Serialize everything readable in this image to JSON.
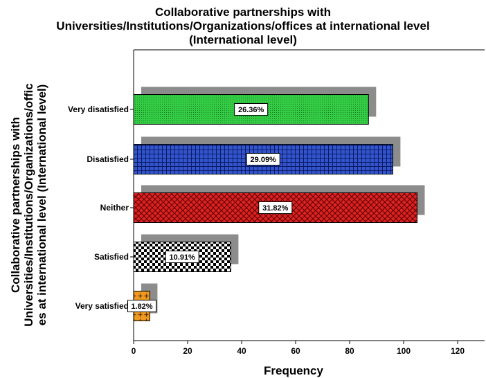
{
  "chart_data": {
    "type": "bar",
    "orientation": "horizontal",
    "title_lines": [
      "Collaborative partnerships with",
      "Universities/Institutions/Organizations/offices at international level",
      "(International level)"
    ],
    "xlabel": "Frequency",
    "ylabel_lines": [
      "Collaborative partnerships with",
      "Universities/Institutions/Organizations/offic",
      "es at international level (International level)"
    ],
    "xlim": [
      0,
      130
    ],
    "xticks": [
      0,
      20,
      40,
      60,
      80,
      100,
      120
    ],
    "categories": [
      "Very disatisfied",
      "Disatisfied",
      "Neither",
      "Satisfied",
      "Very satisfied"
    ],
    "values": [
      87,
      96,
      105,
      36,
      6
    ],
    "data_labels": [
      "26.36%",
      "29.09%",
      "31.82%",
      "10.91%",
      "1.82%"
    ],
    "colors": [
      "#33cc44",
      "#3355cc",
      "#dd2222",
      "#ffffff",
      "#ee9922"
    ],
    "shadow_color": "#8c8c8c",
    "grid": false
  }
}
